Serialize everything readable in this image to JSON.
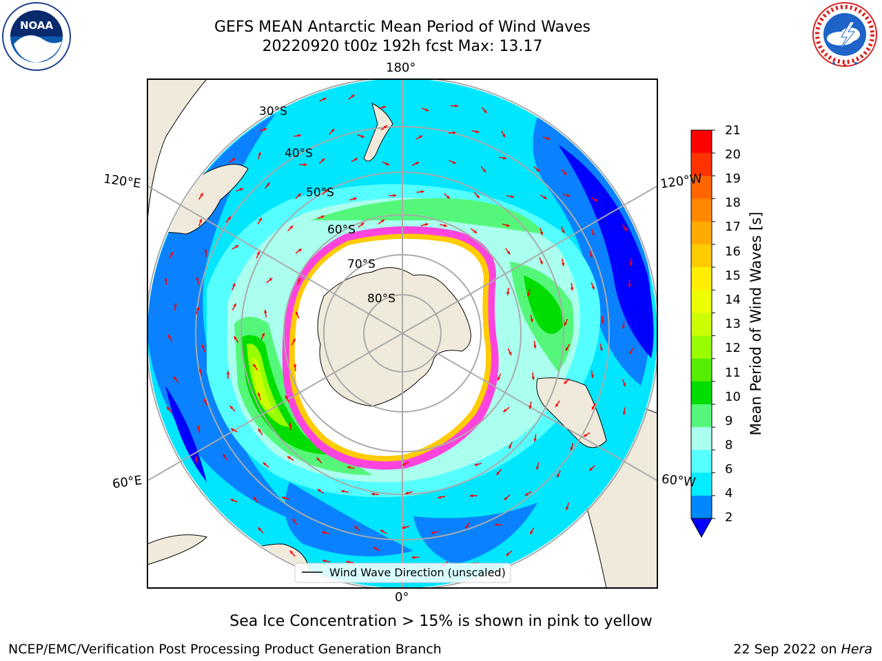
{
  "title": {
    "line1": "GEFS MEAN Antarctic Mean Period of Wind Waves",
    "line2": "20220920 t00z 192h fcst   Max: 13.17"
  },
  "logos": {
    "left": {
      "text": "NOAA",
      "icon": "noaa-logo-icon"
    },
    "right": {
      "icon": "national-weather-service-logo-icon"
    }
  },
  "map": {
    "projection": "south-polar-stereographic",
    "longitude_labels": [
      "180°",
      "120°E",
      "120°W",
      "60°E",
      "60°W",
      "0°"
    ],
    "latitude_labels": [
      "30°S",
      "40°S",
      "50°S",
      "60°S",
      "70°S",
      "80°S"
    ],
    "legend_label": "Wind Wave Direction (unscaled)",
    "arrow_color": "#ff0000",
    "land_color": "#efeadb",
    "sea_ice_color": "#ff44dd"
  },
  "colorbar": {
    "label": "Mean Period of Wind Waves [s]",
    "ticks": [
      "21",
      "20",
      "19",
      "18",
      "17",
      "16",
      "15",
      "14",
      "13",
      "12",
      "11",
      "10",
      "9",
      "8",
      "6",
      "4",
      "2"
    ],
    "colors_top_to_bottom": [
      "#ff0000",
      "#ff3300",
      "#ff6600",
      "#ff8800",
      "#ffaa00",
      "#ffcc00",
      "#ffee00",
      "#eeff00",
      "#ccff00",
      "#99ff00",
      "#55ee00",
      "#00dd00",
      "#55f77a",
      "#aaffee",
      "#55ffff",
      "#00eeff",
      "#0088ff"
    ],
    "extend_color": "#0000ff"
  },
  "caption": "Sea Ice Concentration > 15% is shown in pink to yellow",
  "footer": {
    "left": "NCEP/EMC/Verification Post Processing Product Generation Branch",
    "date": "22 Sep 2022 on ",
    "host": "Hera"
  }
}
